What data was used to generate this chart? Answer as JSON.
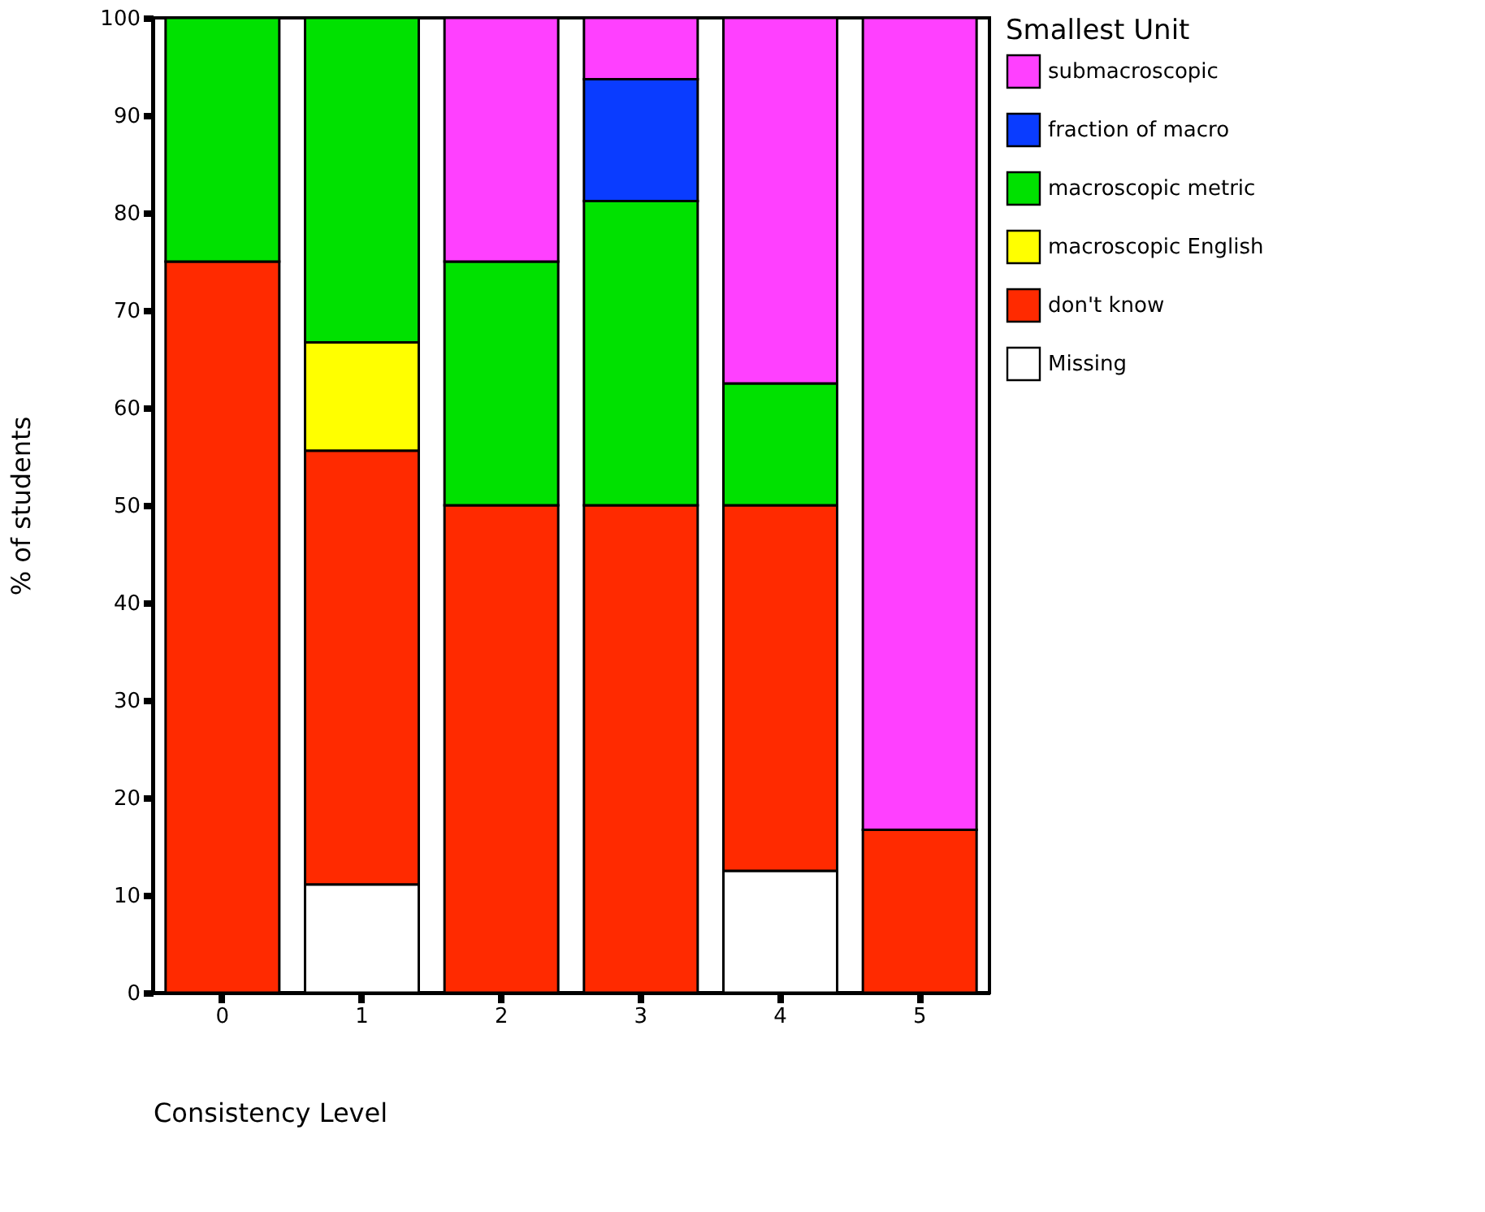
{
  "chart_data": {
    "type": "bar",
    "stacked": true,
    "xlabel": "Consistency Level",
    "ylabel": "% of students",
    "legend_title": "Smallest Unit",
    "legend": "right",
    "categories": [
      "0",
      "1",
      "2",
      "3",
      "4",
      "5"
    ],
    "series": [
      {
        "name": "Missing",
        "color": "#ffffff",
        "values": [
          null,
          11.1,
          null,
          null,
          12.5,
          null
        ]
      },
      {
        "name": "don't know",
        "color": "#ff2a00",
        "values": [
          75,
          44.5,
          50,
          50,
          37.5,
          16.7
        ]
      },
      {
        "name": "macroscopic English",
        "color": "#ffff00",
        "values": [
          null,
          11.1,
          null,
          null,
          null,
          null
        ]
      },
      {
        "name": "macroscopic metric",
        "color": "#00e100",
        "values": [
          25,
          33.3,
          25,
          31.2,
          12.5,
          null
        ]
      },
      {
        "name": "fraction of macro",
        "color": "#0a3cff",
        "values": [
          null,
          null,
          null,
          12.5,
          null,
          null
        ]
      },
      {
        "name": "submacroscopic",
        "color": "#ff40ff",
        "values": [
          null,
          null,
          25,
          6.3,
          37.5,
          83.3
        ]
      }
    ],
    "ylim": [
      0,
      100
    ],
    "yticks": [
      0,
      10,
      20,
      30,
      40,
      50,
      60,
      70,
      80,
      90,
      100
    ],
    "grid": false
  }
}
